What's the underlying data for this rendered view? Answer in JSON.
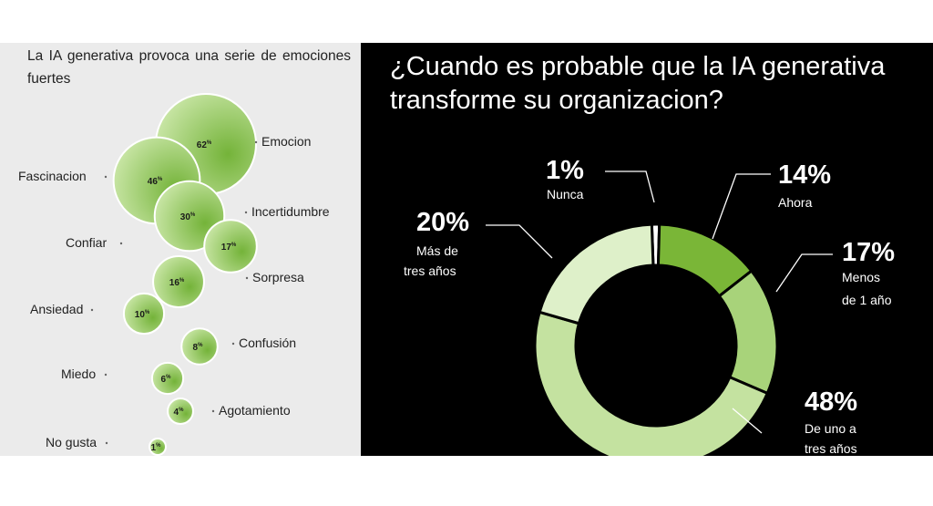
{
  "left": {
    "title": "La IA generativa provoca una serie de emociones fuertes"
  },
  "right": {
    "title": "¿Cuando es probable que la IA generativa transforme su organizacion?"
  },
  "chart_data": [
    {
      "type": "bubble",
      "title": "La IA generativa provoca una serie de emociones fuertes",
      "value_suffix": "%",
      "categories": [
        "Emocion",
        "Fascinacion",
        "Incertidumbre",
        "Confiar",
        "Sorpresa",
        "Ansiedad",
        "Confusión",
        "Miedo",
        "Agotamiento",
        "No gusta"
      ],
      "values": [
        62,
        46,
        30,
        17,
        16,
        10,
        8,
        6,
        4,
        1
      ],
      "colors": {
        "bubble_dark": "#74b339",
        "bubble_light": "#c9e6a6"
      }
    },
    {
      "type": "pie",
      "donut": true,
      "title": "¿Cuando es probable que la IA generativa transforme su organizacion?",
      "slices": [
        {
          "label": "Nunca",
          "value": 1,
          "display": "1%",
          "color": "#ffffff"
        },
        {
          "label": "Ahora",
          "value": 14,
          "display": "14%",
          "color": "#7ab637"
        },
        {
          "label": "Menos de 1 año",
          "value": 17,
          "display": "17%",
          "color": "#a8d37a"
        },
        {
          "label": "De uno a tres años",
          "value": 48,
          "display": "48%",
          "color": "#c4e2a0"
        },
        {
          "label": "Más de tres años",
          "value": 20,
          "display": "20%",
          "color": "#def0c9"
        }
      ]
    }
  ]
}
